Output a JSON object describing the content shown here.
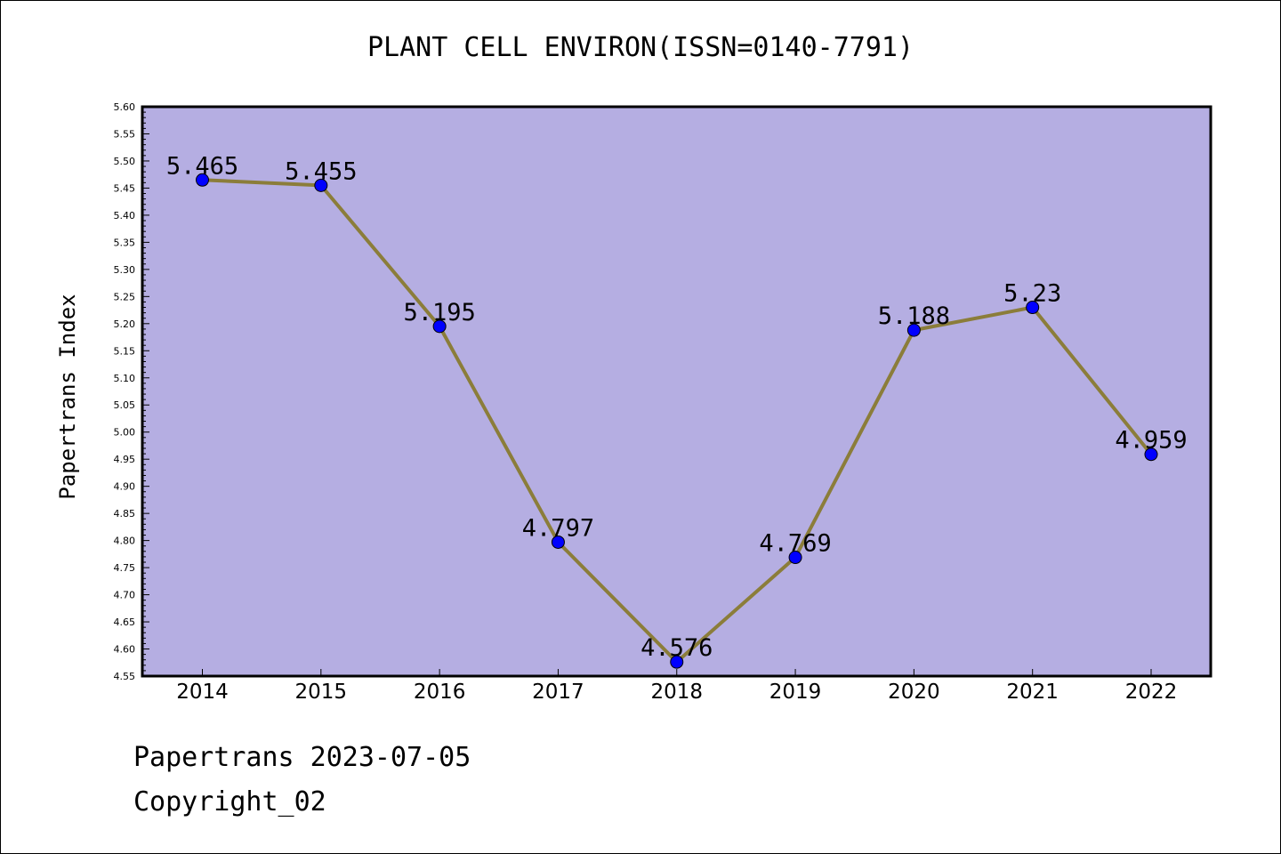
{
  "chart_data": {
    "type": "line",
    "title": "PLANT CELL ENVIRON(ISSN=0140-7791)",
    "xlabel": "",
    "ylabel": "Papertrans Index",
    "categories": [
      "2014",
      "2015",
      "2016",
      "2017",
      "2018",
      "2019",
      "2020",
      "2021",
      "2022"
    ],
    "series": [
      {
        "values": [
          5.465,
          5.455,
          5.195,
          4.797,
          4.576,
          4.769,
          5.188,
          5.23,
          4.959
        ],
        "labels": [
          "5.465",
          "5.455",
          "5.195",
          "4.797",
          "4.576",
          "4.769",
          "5.188",
          "5.23",
          "4.959"
        ]
      }
    ],
    "ylim": [
      4.55,
      5.6
    ],
    "yticks": [
      "4.55",
      "4.60",
      "4.65",
      "4.70",
      "4.75",
      "4.80",
      "4.85",
      "4.90",
      "4.95",
      "5.00",
      "5.05",
      "5.10",
      "5.15",
      "5.20",
      "5.25",
      "5.30",
      "5.35",
      "5.40",
      "5.45",
      "5.50",
      "5.55",
      "5.60"
    ],
    "grid": false,
    "colors": {
      "plot_background": "#b5aee2",
      "line": "#8b7d3a",
      "marker": "#0000ff"
    }
  },
  "footer": {
    "line1": "Papertrans 2023-07-05",
    "line2": "Copyright_02"
  }
}
